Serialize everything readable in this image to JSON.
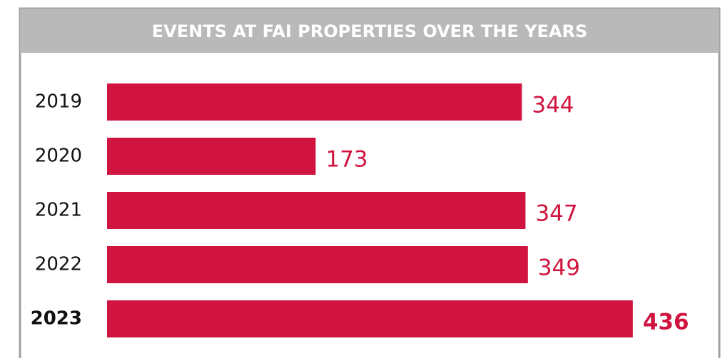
{
  "chart_data": {
    "type": "bar",
    "orientation": "horizontal",
    "title": "EVENTS AT FAI PROPERTIES OVER THE YEARS",
    "categories": [
      "2019",
      "2020",
      "2021",
      "2022",
      "2023"
    ],
    "values": [
      344,
      173,
      347,
      349,
      436
    ],
    "color": "#d0143f"
  }
}
